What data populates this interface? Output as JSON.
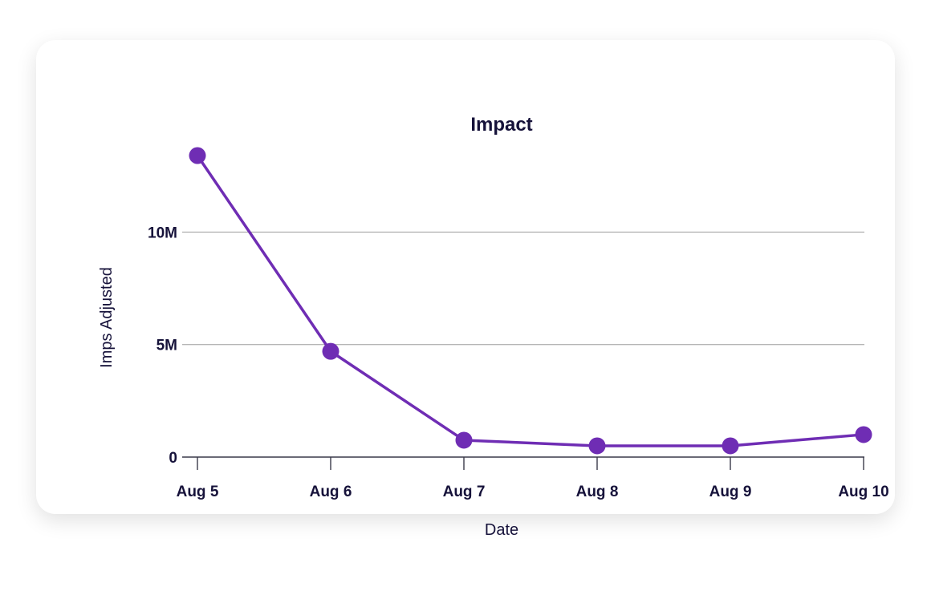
{
  "chart_data": {
    "type": "line",
    "title": "Impact",
    "xlabel": "Date",
    "ylabel": "Imps Adjusted",
    "categories": [
      "Aug 5",
      "Aug 6",
      "Aug 7",
      "Aug 8",
      "Aug 9",
      "Aug 10"
    ],
    "series": [
      {
        "values": [
          13400000,
          4700000,
          750000,
          500000,
          500000,
          1000000
        ]
      }
    ],
    "y_ticks": [
      {
        "value": 0,
        "label": "0"
      },
      {
        "value": 5000000,
        "label": "5M"
      },
      {
        "value": 10000000,
        "label": "10M"
      }
    ],
    "ylim": [
      0,
      13400000
    ],
    "grid": true,
    "legend": "none",
    "colors": {
      "line": "#6f2db4",
      "grid": "#9e9e9e",
      "baseline": "#3a3a4a",
      "text": "#16123a"
    }
  }
}
